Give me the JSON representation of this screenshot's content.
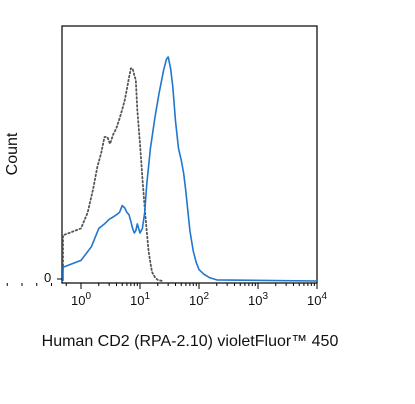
{
  "chart_data": {
    "type": "line",
    "xlabel": "Human CD2 (RPA-2.10) violetFluor™ 450",
    "ylabel": "Count",
    "x_scale": "biexponential",
    "xlim": [
      -0.5,
      10000
    ],
    "ylim": [
      0,
      100
    ],
    "x_ticks": [
      {
        "value": 1,
        "base": "10",
        "exp": "0"
      },
      {
        "value": 10,
        "base": "10",
        "exp": "1"
      },
      {
        "value": 100,
        "base": "10",
        "exp": "2"
      },
      {
        "value": 1000,
        "base": "10",
        "exp": "3"
      },
      {
        "value": 10000,
        "base": "10",
        "exp": "4"
      }
    ],
    "y_ticks": [
      {
        "value": 0,
        "label": "0"
      }
    ],
    "grid": false,
    "legend": "none",
    "series": [
      {
        "style": "dotted",
        "color": "#555555",
        "points": [
          [
            -0.45,
            5
          ],
          [
            -0.35,
            12
          ],
          [
            -0.2,
            17
          ],
          [
            0,
            18
          ],
          [
            0.2,
            19
          ],
          [
            0.4,
            19
          ],
          [
            0.6,
            20
          ],
          [
            0.8,
            21
          ],
          [
            1.0,
            23
          ],
          [
            1.3,
            30
          ],
          [
            1.6,
            40
          ],
          [
            1.9,
            50
          ],
          [
            2.2,
            56
          ],
          [
            2.5,
            63
          ],
          [
            2.8,
            63
          ],
          [
            3.1,
            60
          ],
          [
            3.5,
            64
          ],
          [
            4.0,
            67
          ],
          [
            4.5,
            71
          ],
          [
            5.0,
            75
          ],
          [
            5.5,
            79
          ],
          [
            6.0,
            84
          ],
          [
            6.5,
            89
          ],
          [
            7.0,
            93
          ],
          [
            7.5,
            93
          ],
          [
            8.0,
            90
          ],
          [
            8.5,
            88
          ],
          [
            9.0,
            75
          ],
          [
            10,
            60
          ],
          [
            11,
            45
          ],
          [
            12,
            32
          ],
          [
            13,
            22
          ],
          [
            14,
            13
          ],
          [
            15,
            8
          ],
          [
            16,
            4
          ],
          [
            18,
            1.5
          ],
          [
            20,
            0.5
          ],
          [
            24,
            0
          ]
        ]
      },
      {
        "style": "solid",
        "color": "#1f77d0",
        "points": [
          [
            -0.5,
            0
          ],
          [
            -0.45,
            3
          ],
          [
            -0.4,
            5
          ],
          [
            -0.3,
            4
          ],
          [
            0,
            5
          ],
          [
            0.5,
            6
          ],
          [
            1.0,
            9
          ],
          [
            1.5,
            15
          ],
          [
            2.0,
            23
          ],
          [
            2.5,
            25
          ],
          [
            3.0,
            27
          ],
          [
            3.5,
            28
          ],
          [
            4.0,
            29
          ],
          [
            4.5,
            30
          ],
          [
            5.0,
            33
          ],
          [
            5.5,
            32
          ],
          [
            6.0,
            30
          ],
          [
            6.5,
            29
          ],
          [
            7.0,
            26
          ],
          [
            7.5,
            23
          ],
          [
            8.0,
            21
          ],
          [
            8.5,
            22
          ],
          [
            9.0,
            25
          ],
          [
            10,
            21
          ],
          [
            11,
            23
          ],
          [
            12,
            30
          ],
          [
            13,
            42
          ],
          [
            15,
            58
          ],
          [
            18,
            72
          ],
          [
            21,
            82
          ],
          [
            25,
            92
          ],
          [
            28,
            97
          ],
          [
            30,
            98
          ],
          [
            33,
            93
          ],
          [
            36,
            85
          ],
          [
            40,
            70
          ],
          [
            45,
            58
          ],
          [
            50,
            53
          ],
          [
            55,
            47
          ],
          [
            60,
            39
          ],
          [
            65,
            30
          ],
          [
            70,
            22
          ],
          [
            80,
            13
          ],
          [
            90,
            8
          ],
          [
            100,
            5
          ],
          [
            120,
            3
          ],
          [
            150,
            1.5
          ],
          [
            200,
            0.5
          ],
          [
            10000,
            0
          ]
        ]
      }
    ]
  }
}
